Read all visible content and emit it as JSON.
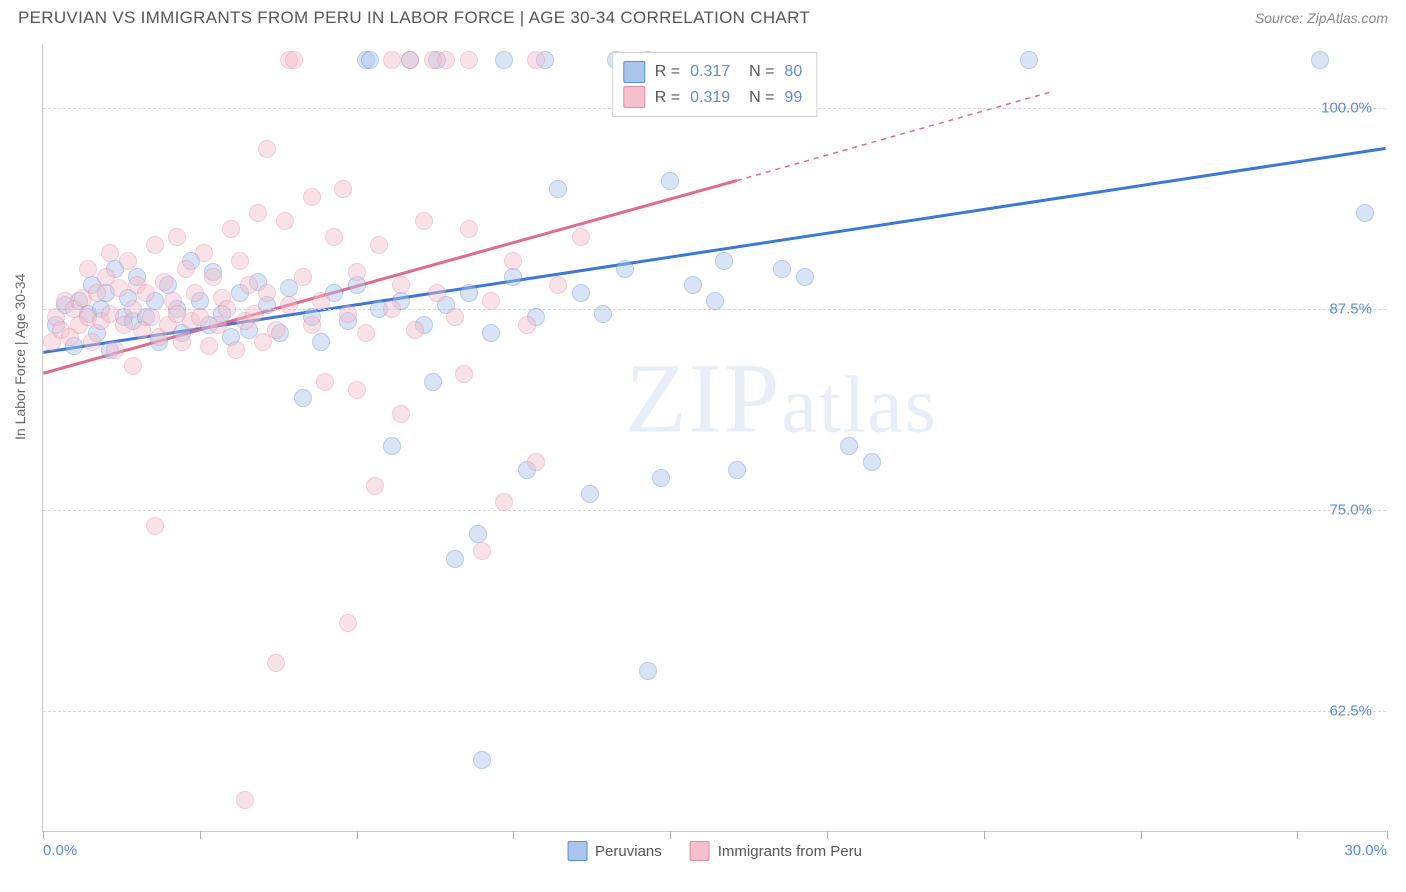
{
  "title": "PERUVIAN VS IMMIGRANTS FROM PERU IN LABOR FORCE | AGE 30-34 CORRELATION CHART",
  "source": "Source: ZipAtlas.com",
  "ylabel": "In Labor Force | Age 30-34",
  "watermark": "ZIPatlas",
  "chart": {
    "type": "scatter",
    "xlim": [
      0,
      30
    ],
    "ylim": [
      55,
      104
    ],
    "x_ticks": [
      0,
      3.5,
      7,
      10.5,
      14,
      17.5,
      21,
      24.5,
      28,
      30
    ],
    "x_tick_labels": {
      "0": "0.0%",
      "30": "30.0%"
    },
    "y_grid": [
      62.5,
      75.0,
      87.5,
      100.0
    ],
    "y_tick_labels": {
      "62.5": "62.5%",
      "75.0": "75.0%",
      "87.5": "87.5%",
      "100.0": "100.0%"
    },
    "background_color": "#ffffff",
    "grid_color": "#d8d8d8",
    "marker_radius": 9,
    "marker_opacity": 0.45,
    "series": [
      {
        "name": "Peruvians",
        "color_fill": "#a9c5ec",
        "color_stroke": "#5b8dd6",
        "R": "0.317",
        "N": "80",
        "trend": {
          "x1": 0,
          "y1": 84.8,
          "x2": 30,
          "y2": 97.5,
          "dash_after_x": 30,
          "color": "#3d78d6",
          "width": 3
        },
        "points": [
          [
            0.3,
            86.5
          ],
          [
            0.5,
            87.8
          ],
          [
            0.7,
            85.2
          ],
          [
            0.8,
            88.0
          ],
          [
            1.0,
            87.2
          ],
          [
            1.1,
            89.0
          ],
          [
            1.2,
            86.0
          ],
          [
            1.3,
            87.5
          ],
          [
            1.4,
            88.5
          ],
          [
            1.5,
            85.0
          ],
          [
            1.6,
            90.0
          ],
          [
            1.8,
            87.0
          ],
          [
            1.9,
            88.2
          ],
          [
            2.0,
            86.8
          ],
          [
            2.1,
            89.5
          ],
          [
            2.3,
            87.0
          ],
          [
            2.5,
            88.0
          ],
          [
            2.6,
            85.5
          ],
          [
            2.8,
            89.0
          ],
          [
            3.0,
            87.5
          ],
          [
            3.1,
            86.0
          ],
          [
            3.3,
            90.5
          ],
          [
            3.5,
            88.0
          ],
          [
            3.7,
            86.5
          ],
          [
            3.8,
            89.8
          ],
          [
            4.0,
            87.2
          ],
          [
            4.2,
            85.8
          ],
          [
            4.4,
            88.5
          ],
          [
            4.6,
            86.2
          ],
          [
            4.8,
            89.2
          ],
          [
            5.0,
            87.8
          ],
          [
            5.3,
            86.0
          ],
          [
            5.5,
            88.8
          ],
          [
            5.8,
            82.0
          ],
          [
            6.0,
            87.0
          ],
          [
            6.2,
            85.5
          ],
          [
            6.5,
            88.5
          ],
          [
            6.8,
            86.8
          ],
          [
            7.0,
            89.0
          ],
          [
            7.2,
            103.0
          ],
          [
            7.3,
            103.0
          ],
          [
            7.5,
            87.5
          ],
          [
            7.8,
            79.0
          ],
          [
            8.0,
            88.0
          ],
          [
            8.2,
            103.0
          ],
          [
            8.5,
            86.5
          ],
          [
            8.7,
            83.0
          ],
          [
            8.8,
            103.0
          ],
          [
            9.0,
            87.8
          ],
          [
            9.2,
            72.0
          ],
          [
            9.5,
            88.5
          ],
          [
            9.7,
            73.5
          ],
          [
            9.8,
            59.5
          ],
          [
            10.0,
            86.0
          ],
          [
            10.3,
            103.0
          ],
          [
            10.5,
            89.5
          ],
          [
            10.8,
            77.5
          ],
          [
            11.0,
            87.0
          ],
          [
            11.2,
            103.0
          ],
          [
            11.5,
            95.0
          ],
          [
            12.0,
            88.5
          ],
          [
            12.2,
            76.0
          ],
          [
            12.5,
            87.2
          ],
          [
            12.8,
            103.0
          ],
          [
            13.0,
            90.0
          ],
          [
            13.5,
            65.0
          ],
          [
            13.5,
            103.0
          ],
          [
            13.8,
            77.0
          ],
          [
            14.0,
            95.5
          ],
          [
            14.5,
            89.0
          ],
          [
            15.0,
            88.0
          ],
          [
            15.2,
            90.5
          ],
          [
            15.5,
            77.5
          ],
          [
            16.5,
            90.0
          ],
          [
            17.0,
            89.5
          ],
          [
            18.0,
            79.0
          ],
          [
            18.5,
            78.0
          ],
          [
            22.0,
            103.0
          ],
          [
            28.5,
            103.0
          ],
          [
            29.5,
            93.5
          ]
        ]
      },
      {
        "name": "Immigrants from Peru",
        "color_fill": "#f3c0cc",
        "color_stroke": "#e78ba4",
        "R": "0.319",
        "N": "99",
        "trend": {
          "x1": 0,
          "y1": 83.5,
          "x2": 15.5,
          "y2": 95.5,
          "dash_after_x": 15.5,
          "dash_x2": 22.5,
          "dash_y2": 101.0,
          "color": "#e26a8b",
          "width": 3
        },
        "points": [
          [
            0.2,
            85.5
          ],
          [
            0.3,
            87.0
          ],
          [
            0.4,
            86.2
          ],
          [
            0.5,
            88.0
          ],
          [
            0.6,
            85.8
          ],
          [
            0.7,
            87.5
          ],
          [
            0.8,
            86.5
          ],
          [
            0.9,
            88.2
          ],
          [
            1.0,
            87.0
          ],
          [
            1.0,
            90.0
          ],
          [
            1.1,
            85.5
          ],
          [
            1.2,
            88.5
          ],
          [
            1.3,
            86.8
          ],
          [
            1.4,
            89.5
          ],
          [
            1.5,
            87.2
          ],
          [
            1.5,
            91.0
          ],
          [
            1.6,
            85.0
          ],
          [
            1.7,
            88.8
          ],
          [
            1.8,
            86.5
          ],
          [
            1.9,
            90.5
          ],
          [
            2.0,
            87.5
          ],
          [
            2.0,
            84.0
          ],
          [
            2.1,
            89.0
          ],
          [
            2.2,
            86.2
          ],
          [
            2.3,
            88.5
          ],
          [
            2.4,
            87.0
          ],
          [
            2.5,
            91.5
          ],
          [
            2.6,
            85.8
          ],
          [
            2.7,
            89.2
          ],
          [
            2.8,
            86.5
          ],
          [
            2.9,
            88.0
          ],
          [
            3.0,
            87.2
          ],
          [
            3.0,
            92.0
          ],
          [
            3.1,
            85.5
          ],
          [
            3.2,
            90.0
          ],
          [
            3.3,
            86.8
          ],
          [
            3.4,
            88.5
          ],
          [
            3.5,
            87.0
          ],
          [
            3.6,
            91.0
          ],
          [
            3.7,
            85.2
          ],
          [
            3.8,
            89.5
          ],
          [
            3.9,
            86.5
          ],
          [
            4.0,
            88.2
          ],
          [
            4.1,
            87.5
          ],
          [
            4.2,
            92.5
          ],
          [
            4.3,
            85.0
          ],
          [
            4.4,
            90.5
          ],
          [
            4.5,
            86.8
          ],
          [
            4.6,
            89.0
          ],
          [
            4.7,
            87.2
          ],
          [
            4.8,
            93.5
          ],
          [
            4.9,
            85.5
          ],
          [
            5.0,
            88.5
          ],
          [
            5.0,
            97.5
          ],
          [
            5.2,
            86.2
          ],
          [
            5.4,
            93.0
          ],
          [
            5.5,
            87.8
          ],
          [
            5.5,
            103.0
          ],
          [
            5.6,
            103.0
          ],
          [
            5.8,
            89.5
          ],
          [
            6.0,
            86.5
          ],
          [
            6.0,
            94.5
          ],
          [
            6.2,
            88.0
          ],
          [
            6.3,
            83.0
          ],
          [
            6.5,
            92.0
          ],
          [
            6.7,
            95.0
          ],
          [
            6.8,
            87.2
          ],
          [
            7.0,
            89.8
          ],
          [
            7.0,
            82.5
          ],
          [
            7.2,
            86.0
          ],
          [
            7.4,
            76.5
          ],
          [
            7.5,
            91.5
          ],
          [
            7.8,
            87.5
          ],
          [
            7.8,
            103.0
          ],
          [
            8.0,
            89.0
          ],
          [
            8.0,
            81.0
          ],
          [
            8.2,
            103.0
          ],
          [
            8.3,
            86.2
          ],
          [
            8.5,
            93.0
          ],
          [
            8.7,
            103.0
          ],
          [
            8.8,
            88.5
          ],
          [
            9.0,
            103.0
          ],
          [
            9.2,
            87.0
          ],
          [
            9.4,
            83.5
          ],
          [
            9.5,
            92.5
          ],
          [
            9.5,
            103.0
          ],
          [
            9.8,
            72.5
          ],
          [
            10.0,
            88.0
          ],
          [
            10.3,
            75.5
          ],
          [
            10.5,
            90.5
          ],
          [
            10.8,
            86.5
          ],
          [
            11.0,
            78.0
          ],
          [
            11.0,
            103.0
          ],
          [
            11.5,
            89.0
          ],
          [
            12.0,
            92.0
          ],
          [
            4.5,
            57.0
          ],
          [
            5.2,
            65.5
          ],
          [
            6.8,
            68.0
          ],
          [
            2.5,
            74.0
          ]
        ]
      }
    ]
  },
  "bottom_legend": [
    {
      "label": "Peruvians",
      "fill": "#a9c5ec",
      "stroke": "#5b8dd6"
    },
    {
      "label": "Immigrants from Peru",
      "fill": "#f3c0cc",
      "stroke": "#e78ba4"
    }
  ]
}
